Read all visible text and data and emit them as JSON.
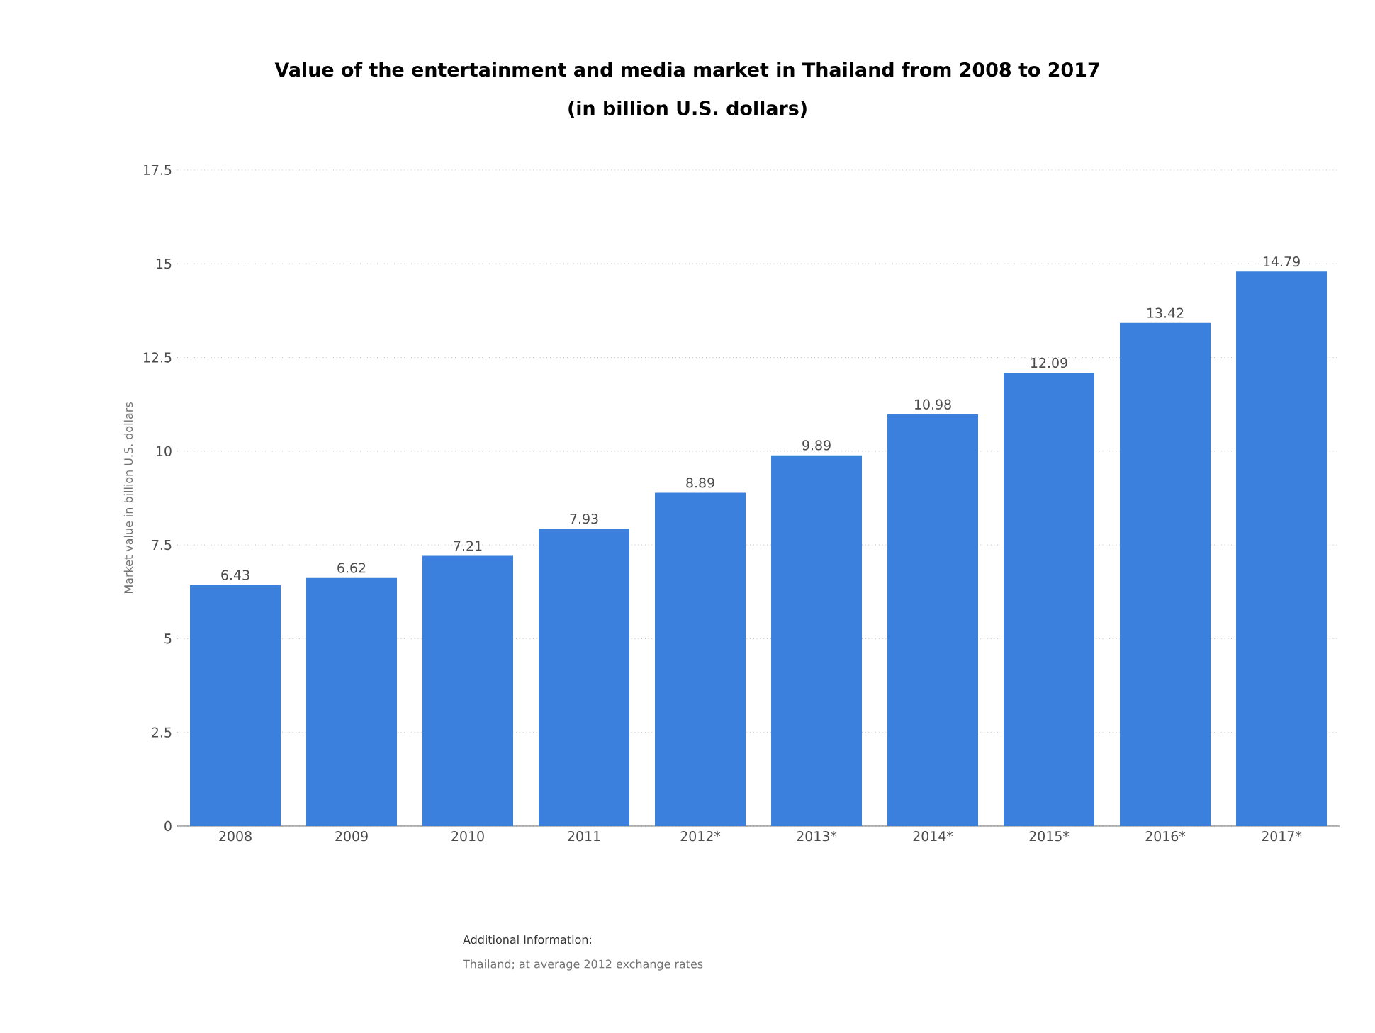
{
  "chart_data": {
    "type": "bar",
    "title": "Value of the entertainment and media market in Thailand from 2008 to 2017",
    "subtitle": "(in billion U.S. dollars)",
    "ylabel": "Market value in billion U.S. dollars",
    "categories": [
      "2008",
      "2009",
      "2010",
      "2011",
      "2012*",
      "2013*",
      "2014*",
      "2015*",
      "2016*",
      "2017*"
    ],
    "values": [
      6.43,
      6.62,
      7.21,
      7.93,
      8.89,
      9.89,
      10.98,
      12.09,
      13.42,
      14.79
    ],
    "color": "#3a80dc",
    "ylim": [
      0,
      17.5
    ],
    "yticks": [
      0,
      2.5,
      5,
      7.5,
      10,
      12.5,
      15,
      17.5
    ],
    "grid": "y",
    "data_labels": true,
    "annotations": [
      "Additional Information:",
      "Thailand; at average 2012 exchange rates"
    ]
  }
}
